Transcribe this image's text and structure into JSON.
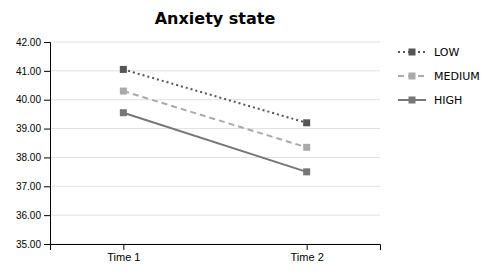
{
  "chart_data": {
    "type": "line",
    "title": "Anxiety state",
    "categories": [
      "Time 1",
      "Time 2"
    ],
    "series": [
      {
        "name": "LOW",
        "color": "#555555",
        "line_style": "dotted",
        "marker": "square",
        "values": [
          41.05,
          39.2
        ]
      },
      {
        "name": "MEDIUM",
        "color": "#aaaaaa",
        "line_style": "dashed",
        "marker": "square",
        "values": [
          40.3,
          38.35
        ]
      },
      {
        "name": "HIGH",
        "color": "#777777",
        "line_style": "solid",
        "marker": "square",
        "values": [
          39.55,
          37.5
        ]
      }
    ],
    "ylim": [
      35.0,
      42.0
    ],
    "yticks": [
      {
        "value": 35.0,
        "label": "35.00"
      },
      {
        "value": 36.0,
        "label": "36.00"
      },
      {
        "value": 37.0,
        "label": "37.00"
      },
      {
        "value": 38.0,
        "label": "38.00"
      },
      {
        "value": 39.0,
        "label": "39.00"
      },
      {
        "value": 40.0,
        "label": "40.00"
      },
      {
        "value": 41.0,
        "label": "41.00"
      },
      {
        "value": 42.0,
        "label": "42.00"
      }
    ],
    "grid": true,
    "legend": "right"
  }
}
